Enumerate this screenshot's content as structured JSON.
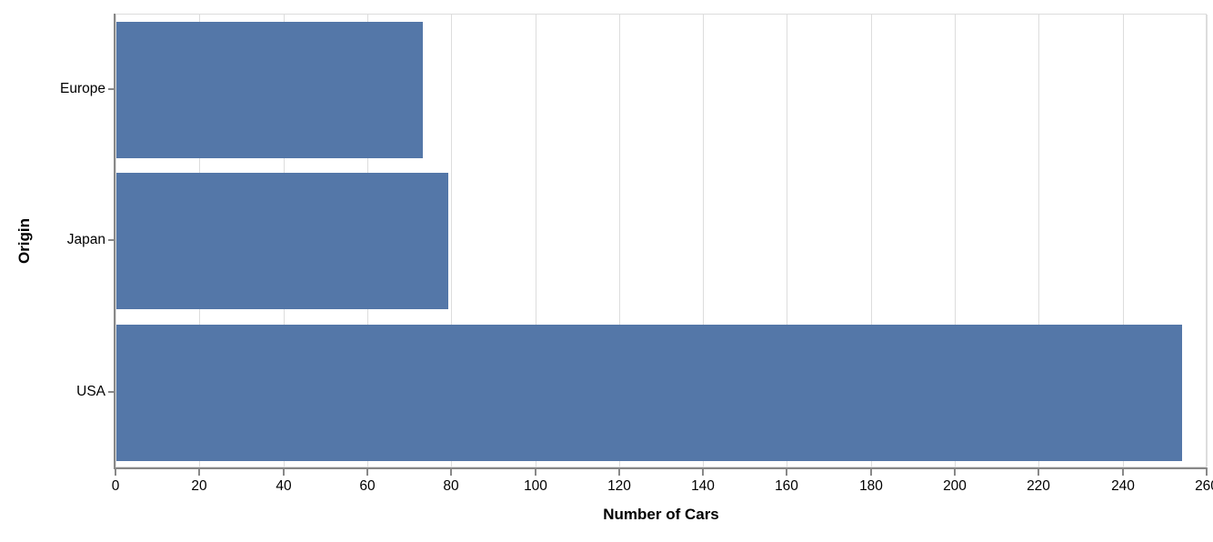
{
  "chart": {
    "colors": {
      "bar": "#5477a8",
      "grid": "#dddddd",
      "axis": "#888888",
      "text": "#000000",
      "background": "#ffffff"
    }
  },
  "chart_data": {
    "type": "bar",
    "orientation": "horizontal",
    "title": "",
    "xlabel": "Number of Cars",
    "ylabel": "Origin",
    "categories": [
      "Europe",
      "Japan",
      "USA"
    ],
    "values": [
      73,
      79,
      254
    ],
    "xlim": [
      0,
      260
    ],
    "xticks": [
      0,
      20,
      40,
      60,
      80,
      100,
      120,
      140,
      160,
      180,
      200,
      220,
      240,
      260
    ],
    "grid": true,
    "legend": false
  }
}
